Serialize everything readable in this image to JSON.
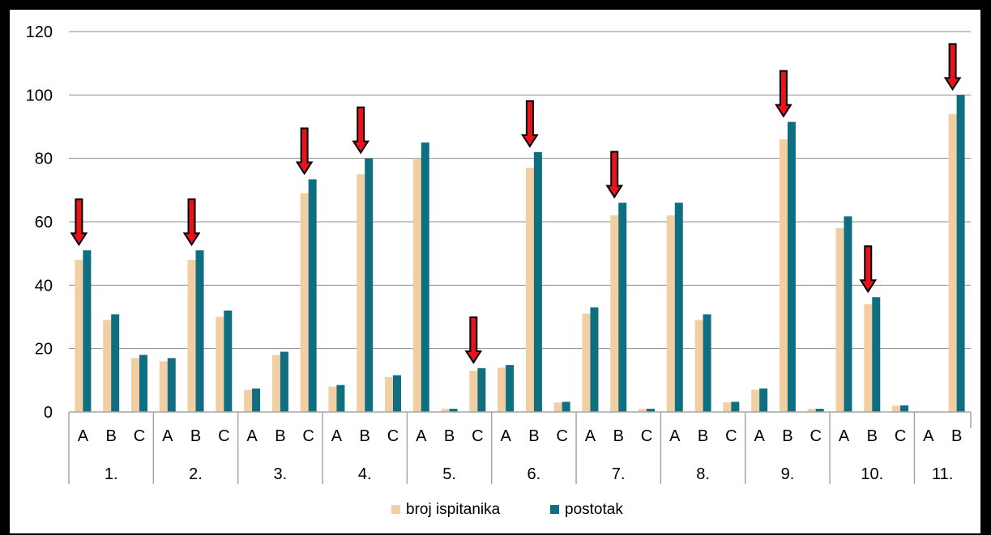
{
  "chart_data": {
    "type": "bar",
    "groups": [
      {
        "label": "1.",
        "categories": [
          "A",
          "B",
          "C"
        ]
      },
      {
        "label": "2.",
        "categories": [
          "A",
          "B",
          "C"
        ]
      },
      {
        "label": "3.",
        "categories": [
          "A",
          "B",
          "C"
        ]
      },
      {
        "label": "4.",
        "categories": [
          "A",
          "B",
          "C"
        ]
      },
      {
        "label": "5.",
        "categories": [
          "A",
          "B",
          "C"
        ]
      },
      {
        "label": "6.",
        "categories": [
          "A",
          "B",
          "C"
        ]
      },
      {
        "label": "7.",
        "categories": [
          "A",
          "B",
          "C"
        ]
      },
      {
        "label": "8.",
        "categories": [
          "A",
          "B",
          "C"
        ]
      },
      {
        "label": "9.",
        "categories": [
          "A",
          "B",
          "C"
        ]
      },
      {
        "label": "10.",
        "categories": [
          "A",
          "B",
          "C"
        ]
      },
      {
        "label": "11.",
        "categories": [
          "A",
          "B"
        ]
      }
    ],
    "series": [
      {
        "name": "broj ispitanika",
        "color": "#F2CFA2",
        "values": [
          48,
          29,
          17,
          16,
          48,
          30,
          7,
          18,
          69,
          8,
          75,
          11,
          80,
          1,
          13,
          14,
          77,
          3,
          31,
          62,
          1,
          62,
          29,
          3,
          7,
          86,
          1,
          58,
          34,
          2,
          0,
          94
        ]
      },
      {
        "name": "postotak",
        "color": "#0F6F80",
        "values": [
          51,
          30.8,
          18,
          17,
          51,
          32,
          7.4,
          19,
          73.4,
          8.5,
          80,
          11.6,
          85,
          1,
          13.8,
          14.8,
          82,
          3.2,
          33,
          66,
          1,
          66,
          30.8,
          3.2,
          7.4,
          91.5,
          1,
          61.7,
          36.2,
          2.1,
          0,
          100
        ]
      }
    ],
    "ylim": [
      0,
      120
    ],
    "yticks": [
      0,
      20,
      40,
      60,
      80,
      100,
      120
    ],
    "grid": true,
    "legend_position": "bottom",
    "highlighted_categories": [
      {
        "group": "1.",
        "category": "A"
      },
      {
        "group": "2.",
        "category": "B"
      },
      {
        "group": "3.",
        "category": "C"
      },
      {
        "group": "4.",
        "category": "B"
      },
      {
        "group": "5.",
        "category": "C"
      },
      {
        "group": "6.",
        "category": "B"
      },
      {
        "group": "7.",
        "category": "B"
      },
      {
        "group": "9.",
        "category": "B"
      },
      {
        "group": "10.",
        "category": "B"
      },
      {
        "group": "11.",
        "category": "B"
      }
    ],
    "highlight_marker": "red-down-arrow-icon",
    "highlight_color": "#E8141B",
    "axis_color": "#A6A6A6",
    "grid_color": "#8C8C8C"
  }
}
